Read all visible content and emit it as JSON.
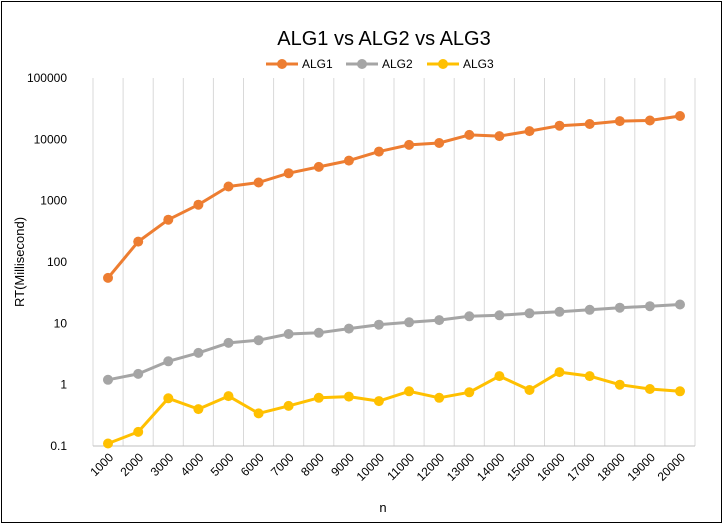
{
  "chart_data": {
    "type": "line",
    "title": "ALG1 vs ALG2 vs ALG3",
    "xlabel": "n",
    "ylabel": "RT(Millisecond)",
    "y_scale": "log",
    "ylim": [
      0.1,
      100000
    ],
    "y_ticks": [
      "0.1",
      "1",
      "10",
      "100",
      "1000",
      "10000",
      "100000"
    ],
    "grid": "vertical",
    "legend_position": "top",
    "categories": [
      "1000",
      "2000",
      "3000",
      "4000",
      "5000",
      "6000",
      "7000",
      "8000",
      "9000",
      "10000",
      "11000",
      "12000",
      "13000",
      "14000",
      "15000",
      "16000",
      "17000",
      "18000",
      "19000",
      "20000"
    ],
    "series": [
      {
        "name": "ALG1",
        "color": "#ED7D31",
        "values": [
          55,
          215,
          490,
          860,
          1700,
          1980,
          2800,
          3550,
          4500,
          6300,
          8100,
          8700,
          11800,
          11300,
          13600,
          16700,
          17800,
          19800,
          20300,
          24000
        ]
      },
      {
        "name": "ALG2",
        "color": "#A5A5A5",
        "values": [
          1.2,
          1.5,
          2.4,
          3.3,
          4.8,
          5.3,
          6.7,
          7.0,
          8.2,
          9.5,
          10.4,
          11.3,
          13.0,
          13.5,
          14.6,
          15.4,
          16.6,
          18.0,
          19.0,
          20.3
        ]
      },
      {
        "name": "ALG3",
        "color": "#FFC000",
        "values": [
          0.11,
          0.17,
          0.6,
          0.4,
          0.65,
          0.34,
          0.45,
          0.61,
          0.64,
          0.54,
          0.78,
          0.61,
          0.75,
          1.38,
          0.82,
          1.6,
          1.38,
          1.0,
          0.85,
          0.78
        ]
      }
    ]
  }
}
